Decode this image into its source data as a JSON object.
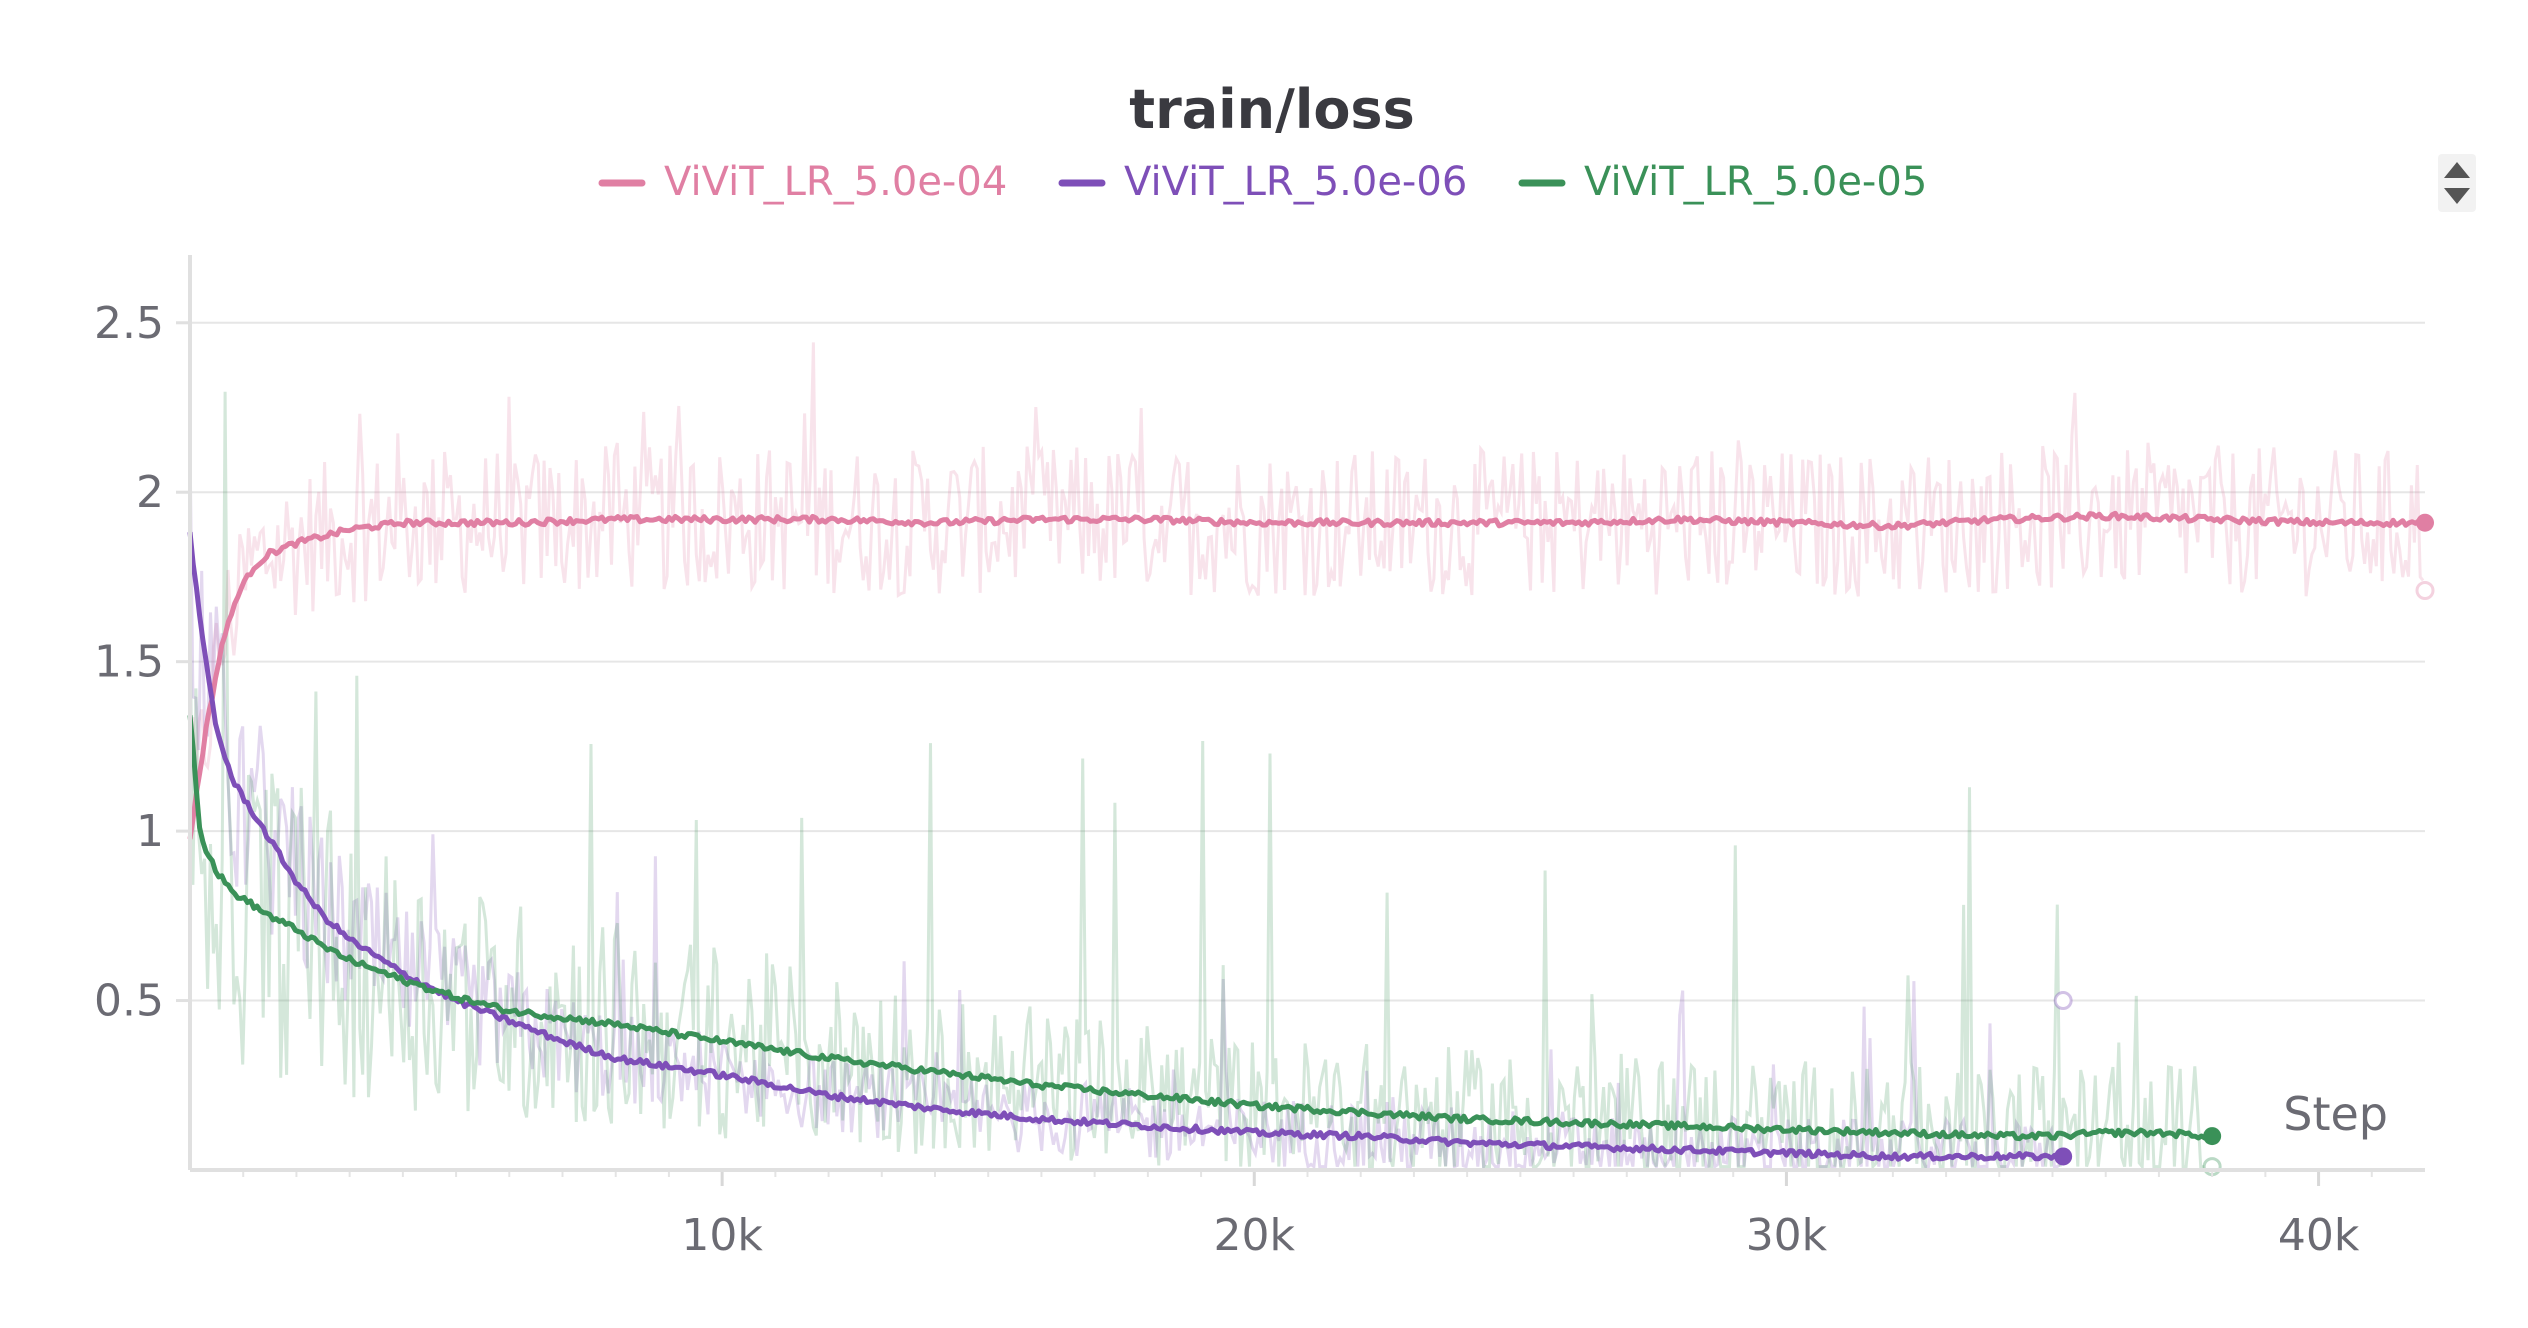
{
  "chart_data": {
    "type": "line",
    "title": "train/loss",
    "xlabel": "Step",
    "ylabel": "",
    "xlim": [
      0,
      42000
    ],
    "ylim": [
      0,
      2.7
    ],
    "x_ticks": [
      {
        "value": 10000,
        "label": "10k"
      },
      {
        "value": 20000,
        "label": "20k"
      },
      {
        "value": 30000,
        "label": "30k"
      },
      {
        "value": 40000,
        "label": "40k"
      }
    ],
    "y_ticks": [
      {
        "value": 0.5,
        "label": "0.5"
      },
      {
        "value": 1,
        "label": "1"
      },
      {
        "value": 1.5,
        "label": "1.5"
      },
      {
        "value": 2,
        "label": "2"
      },
      {
        "value": 2.5,
        "label": "2.5"
      }
    ],
    "grid": true,
    "legend_position": "top-center",
    "series": [
      {
        "name": "ViViT_LR_5.0e-04",
        "color": "#e07fa3",
        "raw_color": "#f6d4e0",
        "smoothed": {
          "x": [
            0,
            300,
            600,
            900,
            1200,
            1500,
            2000,
            2500,
            3000,
            4000,
            5000,
            6000,
            8000,
            10000,
            12000,
            14000,
            16000,
            18000,
            20000,
            22000,
            24000,
            26000,
            28000,
            30000,
            32000,
            34000,
            36000,
            38000,
            40000,
            42000
          ],
          "y": [
            0.98,
            1.3,
            1.55,
            1.7,
            1.78,
            1.82,
            1.85,
            1.87,
            1.89,
            1.91,
            1.91,
            1.91,
            1.92,
            1.92,
            1.92,
            1.91,
            1.92,
            1.92,
            1.91,
            1.91,
            1.91,
            1.91,
            1.92,
            1.91,
            1.9,
            1.92,
            1.93,
            1.92,
            1.91,
            1.91
          ]
        },
        "raw_amplitude": 0.22,
        "last_raw": 1.71
      },
      {
        "name": "ViViT_LR_5.0e-06",
        "color": "#7e4fb8",
        "raw_color": "#e2d6f0",
        "smoothed": {
          "x": [
            0,
            200,
            500,
            800,
            1200,
            1600,
            2000,
            2500,
            3000,
            4000,
            5000,
            6000,
            7000,
            8000,
            10000,
            12000,
            14000,
            16000,
            18000,
            20000,
            22000,
            24000,
            26000,
            28000,
            30000,
            32000,
            34000,
            35200
          ],
          "y": [
            1.88,
            1.6,
            1.3,
            1.15,
            1.05,
            0.95,
            0.85,
            0.75,
            0.68,
            0.58,
            0.5,
            0.44,
            0.38,
            0.33,
            0.28,
            0.22,
            0.18,
            0.15,
            0.13,
            0.11,
            0.1,
            0.08,
            0.07,
            0.06,
            0.05,
            0.04,
            0.04,
            0.04
          ]
        },
        "raw_amplitude": 0.18,
        "last_raw": 0.5
      },
      {
        "name": "ViViT_LR_5.0e-05",
        "color": "#3a9158",
        "raw_color": "#d3ead9",
        "smoothed": {
          "x": [
            0,
            200,
            500,
            800,
            1200,
            1600,
            2000,
            2500,
            3000,
            4000,
            5000,
            6000,
            7000,
            8000,
            10000,
            12000,
            14000,
            16000,
            18000,
            20000,
            22000,
            24000,
            26000,
            28000,
            30000,
            32000,
            34000,
            35000,
            36000,
            37000,
            38000
          ],
          "y": [
            1.35,
            0.98,
            0.88,
            0.82,
            0.78,
            0.74,
            0.71,
            0.66,
            0.62,
            0.56,
            0.51,
            0.47,
            0.45,
            0.43,
            0.38,
            0.33,
            0.29,
            0.25,
            0.22,
            0.19,
            0.17,
            0.15,
            0.14,
            0.13,
            0.12,
            0.11,
            0.1,
            0.1,
            0.11,
            0.11,
            0.1
          ]
        },
        "raw_amplitude": 0.35,
        "last_raw": 0.01
      }
    ]
  }
}
